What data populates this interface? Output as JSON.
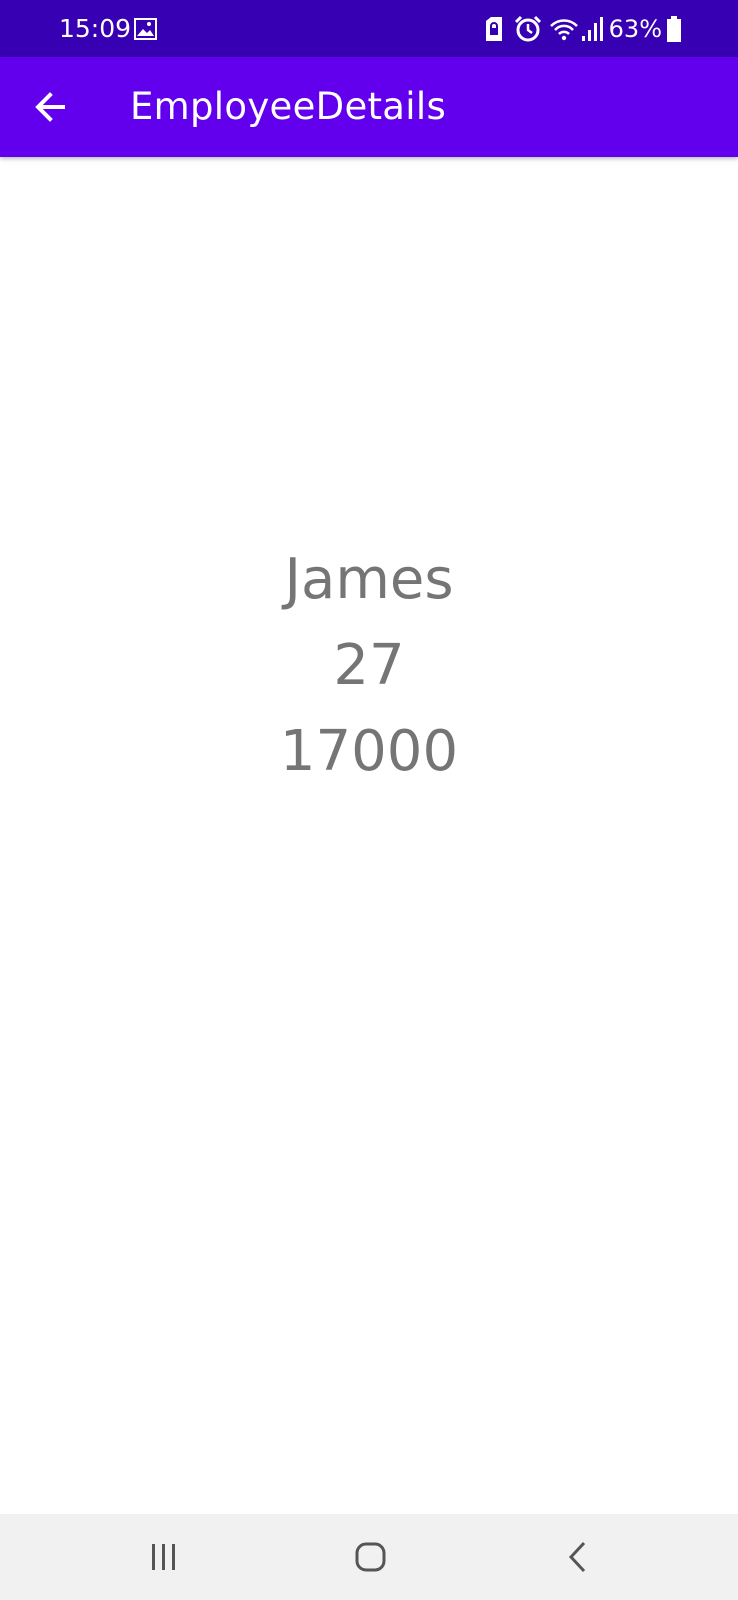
{
  "status_bar": {
    "time": "15:09",
    "battery": "63%",
    "icons": [
      "gallery-icon",
      "sim-lock-icon",
      "alarm-icon",
      "wifi-icon",
      "signal-icon",
      "battery-icon"
    ]
  },
  "app_bar": {
    "title": "EmployeeDetails",
    "back_icon": "back-arrow-icon"
  },
  "employee": {
    "name": "James",
    "age": "27",
    "salary": "17000"
  },
  "nav_bar": {
    "icons": [
      "recent-apps-icon",
      "home-icon",
      "back-icon"
    ]
  },
  "colors": {
    "status_bar": "#3700b3",
    "app_bar": "#6200ee",
    "text": "#757575",
    "nav_bar": "#f1f1f1"
  }
}
